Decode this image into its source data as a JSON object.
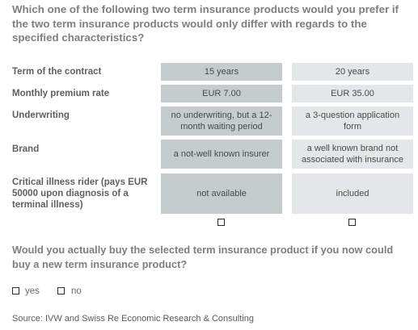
{
  "question": "Which one of the following two term insurance products would you prefer if the two term insurance products would only differ with regards to the specified characteristics?",
  "rows": [
    {
      "label": "Term of the contract",
      "option_a": "15 years",
      "option_b": "20 years"
    },
    {
      "label": "Monthly premium rate",
      "option_a": "EUR 7.00",
      "option_b": "EUR 35.00"
    },
    {
      "label": "Underwriting",
      "option_a": "no underwriting, but a 12-month waiting period",
      "option_b": "a 3-question application form"
    },
    {
      "label": "Brand",
      "option_a": "a not-well known insurer",
      "option_b": "a well known brand not associated with insurance"
    },
    {
      "label": "Critical illness rider (pays EUR 50000 upon diagnosis of a terminal illness)",
      "option_a": "not available",
      "option_b": "included"
    }
  ],
  "followup_question": "Would you actually buy the selected term insurance product if you now could buy a new term insurance product?",
  "answers": {
    "yes": "yes",
    "no": "no"
  },
  "source": "Source: IVW and Swiss Re Economic Research & Consulting"
}
